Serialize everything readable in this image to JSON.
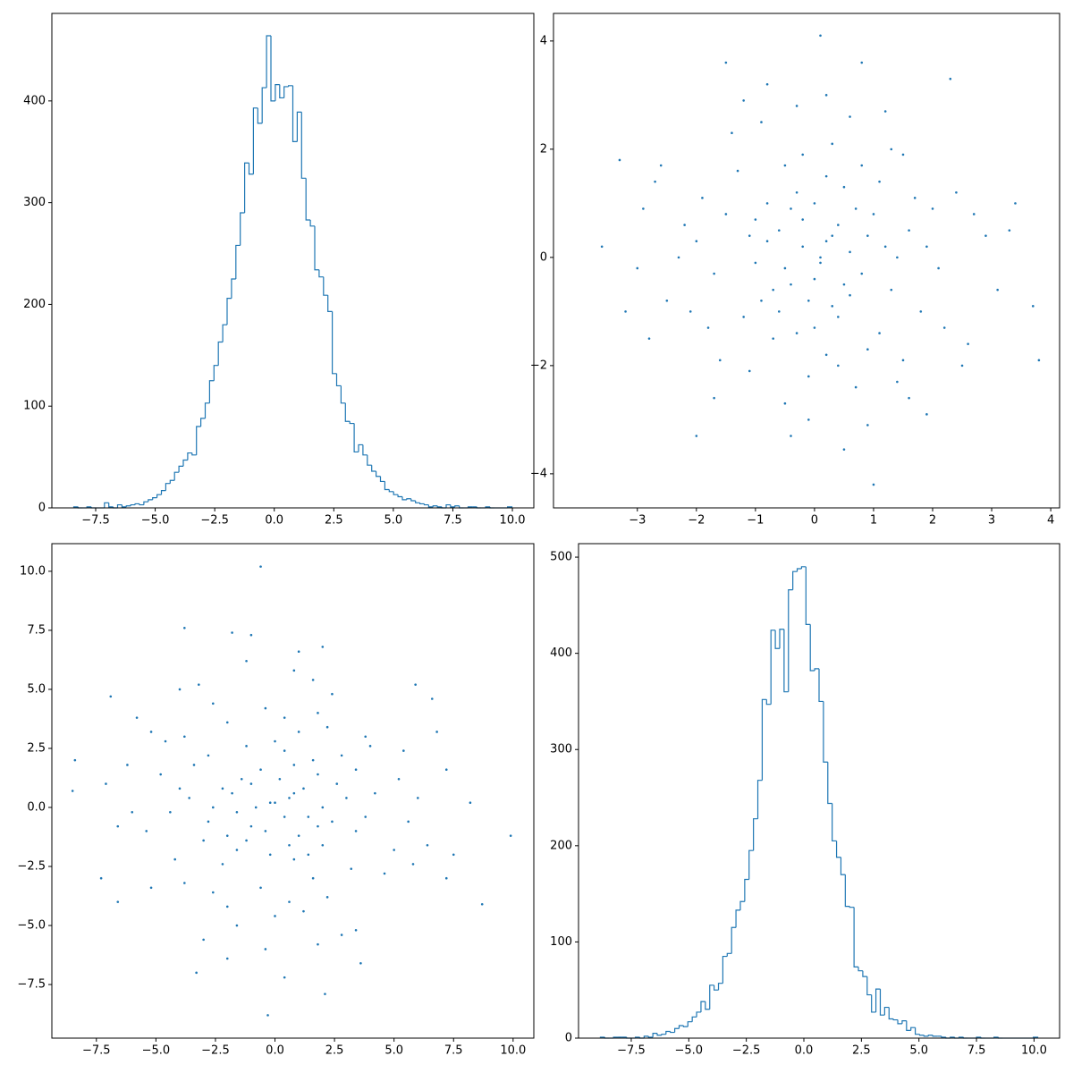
{
  "chart_data": [
    {
      "type": "histogram",
      "color": "#1f77b4",
      "bins": [
        -8.42,
        -8.236,
        -8.052,
        -7.868,
        -7.684,
        -7.5,
        -7.316,
        -7.132,
        -6.948,
        -6.764,
        -6.58,
        -6.396,
        -6.212,
        -6.028,
        -5.844,
        -5.66,
        -5.476,
        -5.292,
        -5.108,
        -4.924,
        -4.74,
        -4.556,
        -4.372,
        -4.188,
        -4.004,
        -3.82,
        -3.636,
        -3.452,
        -3.268,
        -3.084,
        -2.9,
        -2.716,
        -2.532,
        -2.348,
        -2.164,
        -1.98,
        -1.796,
        -1.612,
        -1.428,
        -1.244,
        -1.06,
        -0.876,
        -0.692,
        -0.508,
        -0.324,
        -0.14,
        0.044,
        0.228,
        0.412,
        0.596,
        0.78,
        0.964,
        1.148,
        1.332,
        1.516,
        1.7,
        1.884,
        2.068,
        2.252,
        2.436,
        2.62,
        2.804,
        2.988,
        3.172,
        3.356,
        3.54,
        3.724,
        3.908,
        4.092,
        4.276,
        4.46,
        4.644,
        4.828,
        5.012,
        5.196,
        5.38,
        5.564,
        5.748,
        5.932,
        6.116,
        6.3,
        6.484,
        6.668,
        6.852,
        7.036,
        7.22,
        7.404,
        7.588,
        7.772,
        7.956,
        8.14,
        8.324,
        8.508,
        8.692,
        8.876,
        9.06,
        9.244,
        9.428,
        9.612,
        9.796,
        9.98
      ],
      "values": [
        1,
        0,
        0,
        1,
        0,
        0,
        0,
        5,
        1,
        0,
        3,
        1,
        2,
        3,
        4,
        3,
        6,
        8,
        10,
        13,
        17,
        24,
        27,
        35,
        41,
        47,
        54,
        52,
        80,
        88,
        103,
        125,
        140,
        163,
        180,
        206,
        225,
        258,
        290,
        339,
        328,
        393,
        378,
        413,
        464,
        400,
        416,
        403,
        414,
        415,
        360,
        389,
        324,
        283,
        277,
        234,
        227,
        209,
        193,
        132,
        120,
        103,
        85,
        83,
        55,
        62,
        52,
        42,
        36,
        31,
        26,
        18,
        16,
        13,
        11,
        8,
        9,
        7,
        5,
        4,
        3,
        1,
        2,
        1,
        0,
        3,
        1,
        2,
        0,
        0,
        1,
        1,
        0,
        0,
        1,
        0,
        0,
        0,
        0,
        1
      ],
      "xlim": [
        -9.34,
        10.9
      ],
      "ylim": [
        0,
        486
      ],
      "xticks": [
        {
          "value": -7.5,
          "label": "−7.5"
        },
        {
          "value": -5,
          "label": "−5.0"
        },
        {
          "value": -2.5,
          "label": "−2.5"
        },
        {
          "value": 0,
          "label": "0.0"
        },
        {
          "value": 2.5,
          "label": "2.5"
        },
        {
          "value": 5,
          "label": "5.0"
        },
        {
          "value": 7.5,
          "label": "7.5"
        },
        {
          "value": 10,
          "label": "10.0"
        }
      ],
      "yticks": [
        0,
        100,
        200,
        300,
        400
      ]
    },
    {
      "type": "scatter",
      "color": "#1f77b4",
      "x": [
        -3.6,
        3.8,
        0.1,
        1.0,
        -1.5,
        0.5,
        3.7,
        -3.3,
        2.3,
        -2.8,
        3.4,
        -0.4,
        1.9,
        -2.0,
        0.8,
        0.2,
        -0.5,
        0.7,
        -1.1,
        1.3,
        -0.3,
        0.4,
        -0.9,
        1.6,
        -1.7,
        0.0,
        0.6,
        -0.2,
        1.1,
        -1.3,
        0.9,
        -0.7,
        2.1,
        -2.2,
        0.3,
        -0.1,
        1.5,
        -1.6,
        2.4,
        -2.5,
        0.1,
        -0.6,
        0.5,
        1.2,
        -1.0,
        0.3,
        -0.4,
        0.8,
        -0.8,
        1.8,
        -1.9,
        0.2,
        -0.3,
        1.0,
        -1.2,
        2.6,
        -2.7,
        0.6,
        -0.5,
        1.4,
        -1.4,
        2.9,
        -3.0,
        0.0,
        0.4,
        -0.7,
        0.9,
        -0.1,
        1.7,
        -1.8,
        0.2,
        -0.2,
        2.0,
        -2.1,
        1.3,
        -1.1,
        0.7,
        -0.9,
        2.2,
        -2.3,
        0.5,
        -0.6,
        1.1,
        -1.5,
        0.1,
        -0.2,
        0.3,
        -0.4,
        0.6,
        -0.8,
        1.4,
        -1.0,
        0.0,
        0.8,
        -0.5,
        1.9,
        -2.0,
        0.4,
        -0.3,
        2.7,
        -2.6,
        1.6,
        -1.7,
        3.1,
        -2.9,
        0.2,
        -0.1,
        1.2,
        -1.2,
        2.5,
        3.3,
        -3.2,
        0.9,
        -0.8,
        1.5
      ],
      "y": [
        0.2,
        -1.9,
        4.1,
        -4.2,
        3.6,
        -3.55,
        -0.9,
        1.8,
        3.3,
        -1.5,
        1.0,
        -3.3,
        -2.9,
        -3.3,
        3.6,
        0.3,
        -0.2,
        0.9,
        0.4,
        -0.6,
        1.2,
        -1.1,
        -0.8,
        0.5,
        -0.3,
        -0.4,
        0.1,
        0.7,
        1.4,
        1.6,
        -1.7,
        -1.5,
        -0.2,
        0.6,
        2.1,
        -2.2,
        1.9,
        -1.9,
        1.2,
        -0.8,
        0.0,
        0.5,
        -0.5,
        0.2,
        -0.1,
        -0.9,
        0.9,
        -0.3,
        1.0,
        -1.0,
        1.1,
        1.5,
        -1.4,
        0.8,
        -1.1,
        -1.6,
        1.4,
        2.6,
        -2.7,
        -2.3,
        2.3,
        0.4,
        -0.2,
        1.0,
        0.6,
        -0.6,
        0.4,
        -0.8,
        1.1,
        -1.3,
        -1.8,
        1.9,
        0.9,
        -1.0,
        2.0,
        -2.1,
        -2.4,
        2.5,
        -1.3,
        0.0,
        1.3,
        -1.0,
        -1.4,
        0.8,
        -0.1,
        0.2,
        0.4,
        -0.5,
        -0.7,
        0.3,
        0.0,
        0.7,
        -1.3,
        1.7,
        1.7,
        0.2,
        0.3,
        -2.0,
        2.8,
        0.8,
        1.7,
        -2.6,
        -2.6,
        -0.6,
        0.9,
        3.0,
        -3.0,
        2.7,
        2.9,
        -2.0,
        0.5,
        -1.0,
        -3.1,
        3.2,
        -1.9
      ],
      "xlim": [
        -4.42,
        4.15
      ],
      "ylim": [
        -4.63,
        4.51
      ],
      "xticks": [
        {
          "value": -3,
          "label": "−3"
        },
        {
          "value": -2,
          "label": "−2"
        },
        {
          "value": -1,
          "label": "−1"
        },
        0,
        1,
        2,
        3,
        4
      ],
      "yticks": [
        {
          "value": -4,
          "label": "−4"
        },
        {
          "value": -2,
          "label": "−2"
        },
        0,
        2,
        4
      ]
    },
    {
      "type": "scatter",
      "color": "#1f77b4",
      "x": [
        0.4,
        -3.8,
        8.2,
        -8.4,
        7.2,
        -7.1,
        -1.8,
        3.6,
        6.6,
        -3,
        2,
        -6.6,
        -5.8,
        -6.6,
        7.2,
        0.6,
        -0.4,
        1.8,
        0.8,
        -1.2,
        2.4,
        -2.2,
        -1.6,
        1,
        -0.6,
        -0.8,
        0.2,
        1.4,
        2.8,
        3.2,
        -3.4,
        -3,
        -0.4,
        1.2,
        4.2,
        -4.4,
        3.8,
        -3.8,
        2.4,
        -1.6,
        0,
        1,
        -1,
        0.4,
        -0.2,
        -1.8,
        1.8,
        -0.6,
        2,
        -2,
        2.2,
        3,
        -2.8,
        1.6,
        -2.2,
        -3.2,
        2.8,
        5.2,
        -5.4,
        -4.6,
        4.6,
        0.8,
        -0.4,
        2,
        1.2,
        -1.2,
        0.8,
        -1.6,
        2.2,
        -2.6,
        -3.6,
        3.8,
        1.8,
        -2,
        4,
        -4.2,
        -4.8,
        5,
        -2.6,
        0,
        2.6,
        -2,
        -2.8,
        1.6,
        -0.2,
        0.4,
        0.8,
        -1,
        -1.4,
        0.6,
        0,
        1.4,
        -2.6,
        3.4,
        3.4,
        0.4,
        0.6,
        -4,
        5.6,
        1.6,
        3.4,
        -5.2,
        -5.2,
        -1.2,
        1.8,
        6,
        -6,
        5.4,
        5.8,
        -4,
        1,
        -2,
        -6.2,
        6.4,
        -3.8,
        -8.5,
        9.9,
        -0.6,
        -0.3,
        8.7,
        -6.9,
        7.5,
        5.9,
        2.1,
        -3.3,
        -1.0,
        6.8,
        -7.3
      ],
      "y": [
        -7.2,
        7.6,
        0.2,
        2,
        -3,
        1,
        7.4,
        -6.6,
        4.6,
        -5.6,
        6.8,
        -0.8,
        3.8,
        -4,
        1.6,
        0.4,
        -1,
        1.4,
        -2.2,
        2.6,
        -0.6,
        0.8,
        -1.8,
        3.2,
        -3.4,
        0,
        1.2,
        -0.4,
        2.2,
        -2.6,
        1.8,
        -1.4,
        4.2,
        -4.4,
        0.6,
        -0.2,
        3,
        -3.2,
        4.8,
        -5,
        0.2,
        -1.2,
        1,
        2.4,
        -2,
        0.6,
        -0.8,
        1.6,
        -1.6,
        3.6,
        -3.8,
        0.4,
        -0.6,
        2,
        -2.4,
        5.2,
        -5.4,
        1.2,
        -1,
        2.8,
        -2.8,
        5.8,
        -6,
        0,
        0.8,
        -1.4,
        1.8,
        -0.2,
        3.4,
        -3.6,
        0.4,
        -0.4,
        4,
        -4.2,
        2.6,
        -2.2,
        1.4,
        -1.8,
        4.4,
        -4.6,
        1,
        -1.2,
        2.2,
        -3,
        0.2,
        -0.4,
        0.6,
        -0.8,
        1.2,
        -1.6,
        2.8,
        -2,
        0,
        1.6,
        -1,
        3.8,
        -4,
        0.8,
        -0.6,
        5.4,
        -5.2,
        3.2,
        -3.4,
        6.2,
        -5.8,
        0.4,
        -0.2,
        2.4,
        -2.4,
        5,
        6.6,
        -6.4,
        1.8,
        -1.6,
        3,
        0.7,
        -1.2,
        10.2,
        -8.8,
        -4.1,
        4.7,
        -2.0,
        5.2,
        -7.9,
        -7.0,
        7.3,
        3.2,
        -3.0
      ],
      "xlim": [
        -9.37,
        10.87
      ],
      "ylim": [
        -9.77,
        11.17
      ],
      "xticks": [
        {
          "value": -7.5,
          "label": "−7.5"
        },
        {
          "value": -5,
          "label": "−5.0"
        },
        {
          "value": -2.5,
          "label": "−2.5"
        },
        {
          "value": 0,
          "label": "0.0"
        },
        {
          "value": 2.5,
          "label": "2.5"
        },
        {
          "value": 5,
          "label": "5.0"
        },
        {
          "value": 7.5,
          "label": "7.5"
        },
        {
          "value": 10,
          "label": "10.0"
        }
      ],
      "yticks": [
        {
          "value": -7.5,
          "label": "−7.5"
        },
        {
          "value": -5,
          "label": "−5.0"
        },
        {
          "value": -2.5,
          "label": "−2.5"
        },
        {
          "value": 0,
          "label": "0.0"
        },
        {
          "value": 2.5,
          "label": "2.5"
        },
        {
          "value": 5,
          "label": "5.0"
        },
        {
          "value": 7.5,
          "label": "7.5"
        },
        {
          "value": 10,
          "label": "10.0"
        }
      ]
    },
    {
      "type": "histogram",
      "color": "#1f77b4",
      "bins": [
        -8.84,
        -8.65,
        -8.46,
        -8.27,
        -8.08,
        -7.89,
        -7.7,
        -7.51,
        -7.32,
        -7.13,
        -6.94,
        -6.75,
        -6.56,
        -6.37,
        -6.18,
        -5.99,
        -5.8,
        -5.61,
        -5.42,
        -5.23,
        -5.04,
        -4.85,
        -4.66,
        -4.47,
        -4.28,
        -4.09,
        -3.9,
        -3.71,
        -3.52,
        -3.33,
        -3.14,
        -2.95,
        -2.76,
        -2.57,
        -2.38,
        -2.19,
        -2,
        -1.81,
        -1.62,
        -1.43,
        -1.24,
        -1.05,
        -0.86,
        -0.67,
        -0.48,
        -0.29,
        -0.1,
        0.09,
        0.28,
        0.47,
        0.66,
        0.85,
        1.04,
        1.23,
        1.42,
        1.61,
        1.8,
        1.99,
        2.18,
        2.37,
        2.56,
        2.75,
        2.94,
        3.13,
        3.32,
        3.51,
        3.7,
        3.89,
        4.08,
        4.27,
        4.46,
        4.65,
        4.84,
        5.03,
        5.22,
        5.41,
        5.6,
        5.79,
        5.98,
        6.17,
        6.36,
        6.55,
        6.74,
        6.93,
        7.12,
        7.31,
        7.5,
        7.69,
        7.88,
        8.07,
        8.26,
        8.45,
        8.64,
        8.83,
        9.02,
        9.21,
        9.4,
        9.59,
        9.78,
        9.97,
        10.16
      ],
      "values": [
        1,
        0,
        0,
        1,
        1,
        1,
        0,
        0,
        1,
        0,
        2,
        1,
        5,
        3,
        4,
        7,
        6,
        10,
        13,
        12,
        17,
        22,
        27,
        38,
        30,
        55,
        50,
        57,
        85,
        88,
        115,
        133,
        142,
        165,
        195,
        228,
        268,
        352,
        347,
        424,
        405,
        425,
        360,
        466,
        485,
        488,
        490,
        430,
        382,
        384,
        350,
        287,
        244,
        205,
        188,
        170,
        137,
        136,
        74,
        70,
        64,
        45,
        27,
        51,
        24,
        32,
        20,
        19,
        15,
        18,
        8,
        11,
        4,
        3,
        2,
        3,
        2,
        2,
        1,
        0,
        1,
        0,
        1,
        0,
        0,
        0,
        1,
        0,
        0,
        0,
        1,
        0,
        0,
        0,
        0,
        0,
        0,
        0,
        0,
        1
      ],
      "xlim": [
        -9.79,
        11.11
      ],
      "ylim": [
        0,
        514
      ],
      "xticks": [
        {
          "value": -7.5,
          "label": "−7.5"
        },
        {
          "value": -5,
          "label": "−5.0"
        },
        {
          "value": -2.5,
          "label": "−2.5"
        },
        {
          "value": 0,
          "label": "0.0"
        },
        {
          "value": 2.5,
          "label": "2.5"
        },
        {
          "value": 5,
          "label": "5.0"
        },
        {
          "value": 7.5,
          "label": "7.5"
        },
        {
          "value": 10,
          "label": "10.0"
        }
      ],
      "yticks": [
        0,
        100,
        200,
        300,
        400,
        500
      ]
    }
  ]
}
